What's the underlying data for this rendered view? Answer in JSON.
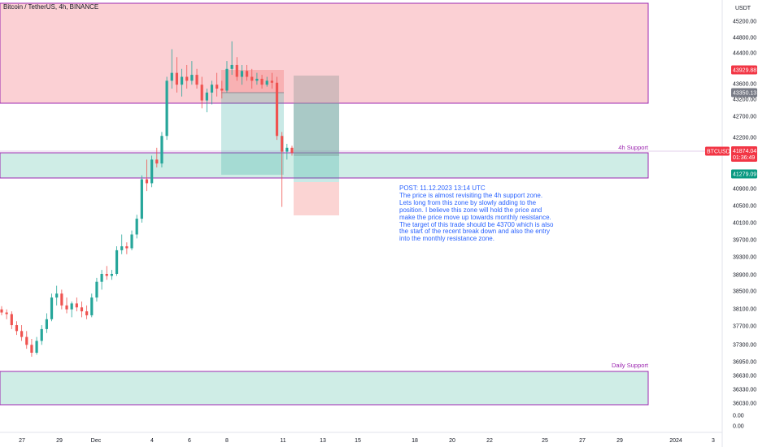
{
  "header": {
    "symbol": "Bitcoin / TetherUS, 4h, BINANCE"
  },
  "price_axis": {
    "currency": "USDT",
    "labels": [
      "45200.00",
      "44800.00",
      "44400.00",
      "44000.00",
      "43600.00",
      "43200.00",
      "42700.00",
      "42200.00",
      "41700.00",
      "40900.00",
      "40500.00",
      "40100.00",
      "39700.00",
      "39300.00",
      "38900.00",
      "38500.00",
      "38100.00",
      "37700.00",
      "37300.00",
      "36950.00",
      "36630.00",
      "36330.00",
      "36030.00",
      "0.00",
      "0.00"
    ]
  },
  "time_axis": {
    "labels": [
      "27",
      "29",
      "Dec",
      "4",
      "6",
      "8",
      "11",
      "13",
      "15",
      "18",
      "20",
      "22",
      "25",
      "27",
      "29",
      "2024",
      "3"
    ]
  },
  "badges": {
    "resistance_price": "43929.88",
    "entry_price": "43350.13",
    "ticker": "BTCUSDT",
    "last_price": "41874.04",
    "countdown": "01:36:49",
    "support_price": "41279.09"
  },
  "zones": {
    "resistance": {
      "label": "",
      "color": "#f7a9b0"
    },
    "support_4h": {
      "label": "4h Support",
      "color": "#a8dfd2"
    },
    "support_daily": {
      "label": "Daily Support",
      "color": "#a8dfd2"
    },
    "border_color": "#9c27b0"
  },
  "note": {
    "title": "POST: 11.12.2023 13:14 UTC",
    "body": "The price is almost revisiting the 4h support zone. Lets long from this zone by slowly adding to the position. I believe this zone will hold the price and make the price move up towards monthly resistance. The target of this trade should be 43700 which is also the start of the recent break down and also the entry into the monthly resistance zone."
  },
  "chart_data": {
    "type": "candlestick",
    "title": "Bitcoin / TetherUS, 4h, BINANCE",
    "y_unit": "USDT",
    "ylim": [
      36000,
      45600
    ],
    "up_color": "#26a69a",
    "down_color": "#ef5350",
    "candles_ohlc": [
      [
        37900,
        37980,
        37750,
        37820
      ],
      [
        37820,
        37900,
        37650,
        37780
      ],
      [
        37780,
        37850,
        37400,
        37500
      ],
      [
        37500,
        37600,
        37250,
        37350
      ],
      [
        37350,
        37500,
        37100,
        37200
      ],
      [
        37200,
        37350,
        36900,
        37000
      ],
      [
        37000,
        37150,
        36700,
        36800
      ],
      [
        36800,
        37200,
        36750,
        37100
      ],
      [
        37100,
        37500,
        37000,
        37400
      ],
      [
        37400,
        37800,
        37300,
        37650
      ],
      [
        37650,
        38300,
        37600,
        38200
      ],
      [
        38200,
        38500,
        38000,
        38300
      ],
      [
        38300,
        38400,
        37900,
        38000
      ],
      [
        38000,
        38200,
        37800,
        37900
      ],
      [
        37900,
        38100,
        37700,
        38050
      ],
      [
        38050,
        38200,
        37850,
        37950
      ],
      [
        37950,
        38100,
        37700,
        37850
      ],
      [
        37850,
        38000,
        37650,
        37750
      ],
      [
        37750,
        38300,
        37700,
        38200
      ],
      [
        38200,
        38700,
        38100,
        38600
      ],
      [
        38600,
        38900,
        38400,
        38800
      ],
      [
        38800,
        39000,
        38650,
        38750
      ],
      [
        38750,
        38900,
        38650,
        38800
      ],
      [
        38800,
        39500,
        38750,
        39400
      ],
      [
        39400,
        39800,
        39300,
        39500
      ],
      [
        39500,
        39600,
        39300,
        39450
      ],
      [
        39450,
        39900,
        39400,
        39800
      ],
      [
        39800,
        40300,
        39700,
        40200
      ],
      [
        40200,
        41300,
        40100,
        41200
      ],
      [
        41200,
        41700,
        40900,
        41100
      ],
      [
        41100,
        41800,
        41000,
        41700
      ],
      [
        41700,
        42000,
        41500,
        41600
      ],
      [
        41600,
        42400,
        41500,
        42300
      ],
      [
        42300,
        43800,
        42200,
        43700
      ],
      [
        43700,
        44500,
        43500,
        43900
      ],
      [
        43900,
        44300,
        43400,
        43600
      ],
      [
        43600,
        44000,
        43300,
        43800
      ],
      [
        43800,
        44100,
        43500,
        43700
      ],
      [
        43700,
        44200,
        43600,
        43850
      ],
      [
        43850,
        44000,
        43500,
        43600
      ],
      [
        43600,
        43800,
        43000,
        43200
      ],
      [
        43200,
        43500,
        42900,
        43400
      ],
      [
        43400,
        43700,
        43100,
        43600
      ],
      [
        43600,
        43900,
        43300,
        43500
      ],
      [
        43500,
        43700,
        43250,
        43450
      ],
      [
        43450,
        44200,
        43400,
        44000
      ],
      [
        44000,
        44700,
        43850,
        44100
      ],
      [
        44100,
        44300,
        43700,
        43800
      ],
      [
        43800,
        44100,
        43600,
        43950
      ],
      [
        43950,
        44100,
        43700,
        43800
      ],
      [
        43800,
        44000,
        43500,
        43700
      ],
      [
        43700,
        43900,
        43600,
        43750
      ],
      [
        43750,
        43850,
        43500,
        43600
      ],
      [
        43600,
        43800,
        43550,
        43700
      ],
      [
        43700,
        43900,
        43500,
        43650
      ],
      [
        43650,
        43800,
        42200,
        42300
      ],
      [
        42300,
        42400,
        40500,
        41900
      ],
      [
        41900,
        42100,
        41700,
        42000
      ],
      [
        42000,
        42050,
        41800,
        41874
      ]
    ]
  }
}
